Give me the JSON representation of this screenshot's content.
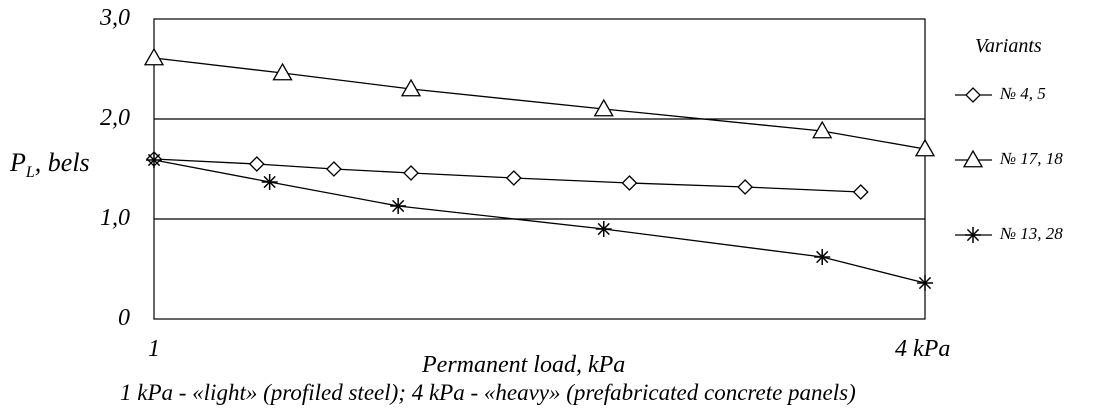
{
  "chart_data": {
    "type": "line",
    "xlabel": "Permanent load, kPa",
    "ylabel_main": "P",
    "ylabel_sub": "L",
    "ylabel_suffix": ", bels",
    "caption": "1 kPa - «light» (profiled steel); 4 kPa - «heavy» (prefabricated concrete panels)",
    "xlim": [
      1,
      4
    ],
    "ylim": [
      0,
      3
    ],
    "yticks": [
      {
        "value": 3,
        "label": "3,0"
      },
      {
        "value": 2,
        "label": "2,0"
      },
      {
        "value": 1,
        "label": "1,0"
      },
      {
        "value": 0,
        "label": "0"
      }
    ],
    "xticks": [
      {
        "value": 1,
        "label": "1"
      },
      {
        "value": 4,
        "label": "4 kPa"
      }
    ],
    "gridlines_y": [
      1,
      2
    ],
    "legend_title": "Variants",
    "legend_position": "right",
    "series": [
      {
        "name": "№ 4, 5",
        "marker": "diamond",
        "x": [
          1.0,
          1.4,
          1.7,
          2.0,
          2.4,
          2.85,
          3.3,
          3.75
        ],
        "y": [
          1.6,
          1.55,
          1.5,
          1.46,
          1.41,
          1.36,
          1.32,
          1.27
        ]
      },
      {
        "name": "№ 17, 18",
        "marker": "triangle",
        "x": [
          1.0,
          1.5,
          2.0,
          2.75,
          3.6,
          4.0
        ],
        "y": [
          2.61,
          2.46,
          2.3,
          2.1,
          1.88,
          1.7
        ]
      },
      {
        "name": "№ 13, 28",
        "marker": "star",
        "x": [
          1.0,
          1.45,
          1.95,
          2.75,
          3.6,
          4.0
        ],
        "y": [
          1.59,
          1.37,
          1.13,
          0.9,
          0.62,
          0.36
        ]
      }
    ]
  }
}
